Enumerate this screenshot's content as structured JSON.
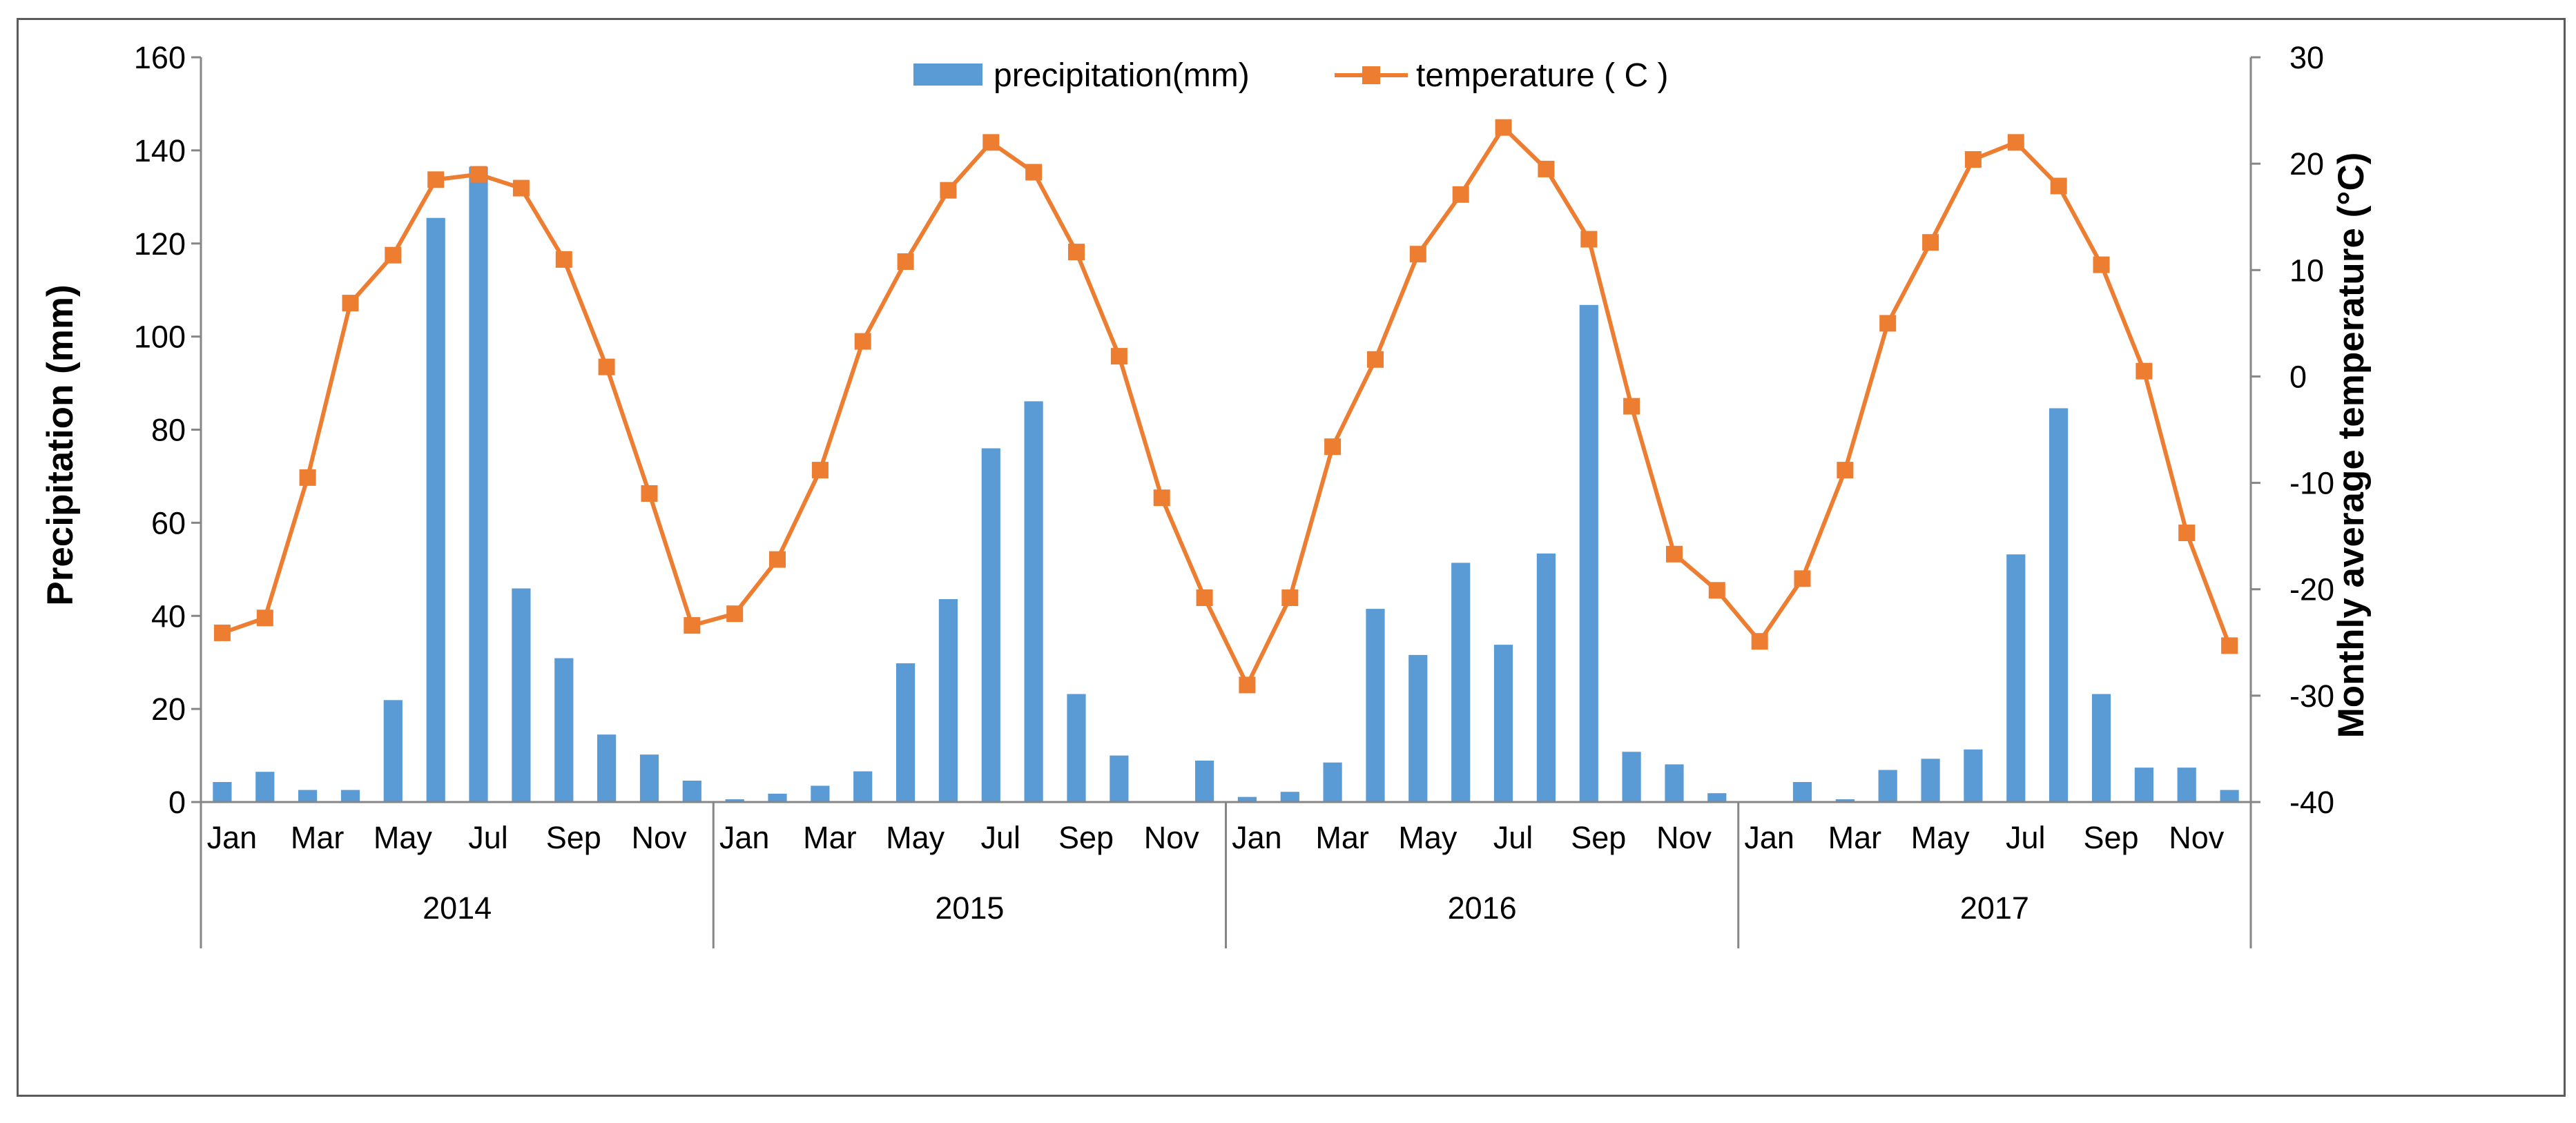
{
  "chart_data": {
    "type": "bar",
    "title": "",
    "xlabel": "",
    "ylabel": "Precipitation (mm)",
    "y2label": "Monthly average temperature (°C)",
    "ylim": [
      0,
      160
    ],
    "y2lim": [
      -40,
      30
    ],
    "yticks": [
      "0",
      "20",
      "40",
      "60",
      "80",
      "100",
      "120",
      "140",
      "160"
    ],
    "y2ticks": [
      "-40",
      "-30",
      "-20",
      "-10",
      "0",
      "10",
      "20",
      "30"
    ],
    "legend_position": "top-center",
    "years": [
      "2014",
      "2015",
      "2016",
      "2017"
    ],
    "month_labels": [
      "Jan",
      "",
      "Mar",
      "",
      "May",
      "",
      "Jul",
      "",
      "Sep",
      "",
      "Nov",
      ""
    ],
    "series": [
      {
        "name": "precipitation(mm)",
        "type": "bar",
        "axis": "left",
        "color": "#5b9bd5",
        "values": [
          4.3,
          6.5,
          2.6,
          2.6,
          21.9,
          125.5,
          136.5,
          45.9,
          30.9,
          14.5,
          10.2,
          4.6,
          0.6,
          1.8,
          3.5,
          6.6,
          29.8,
          43.6,
          76.0,
          86.1,
          23.2,
          10.0,
          0.0,
          8.9,
          1.1,
          2.2,
          8.5,
          41.5,
          31.6,
          51.4,
          33.8,
          53.4,
          106.8,
          10.8,
          8.1,
          1.9,
          0.0,
          4.3,
          0.6,
          6.9,
          9.3,
          11.3,
          53.2,
          84.6,
          23.2,
          7.4,
          7.4,
          2.6
        ]
      },
      {
        "name": "temperature ( C )",
        "type": "line",
        "axis": "right",
        "color": "#ed7d31",
        "values": [
          -24.1,
          -22.7,
          -9.5,
          6.9,
          11.4,
          18.5,
          19.0,
          17.7,
          11.0,
          0.9,
          -11.0,
          -23.4,
          -22.3,
          -17.2,
          -8.8,
          3.3,
          10.8,
          17.5,
          22.0,
          19.2,
          11.7,
          1.9,
          -11.4,
          -20.8,
          -29.0,
          -20.8,
          -6.6,
          1.6,
          11.5,
          17.1,
          23.4,
          19.5,
          12.9,
          -2.8,
          -16.7,
          -20.1,
          -24.9,
          -19.0,
          -8.8,
          5.0,
          12.6,
          20.4,
          22.0,
          17.9,
          10.5,
          0.5,
          -14.7,
          -25.3
        ]
      }
    ]
  }
}
